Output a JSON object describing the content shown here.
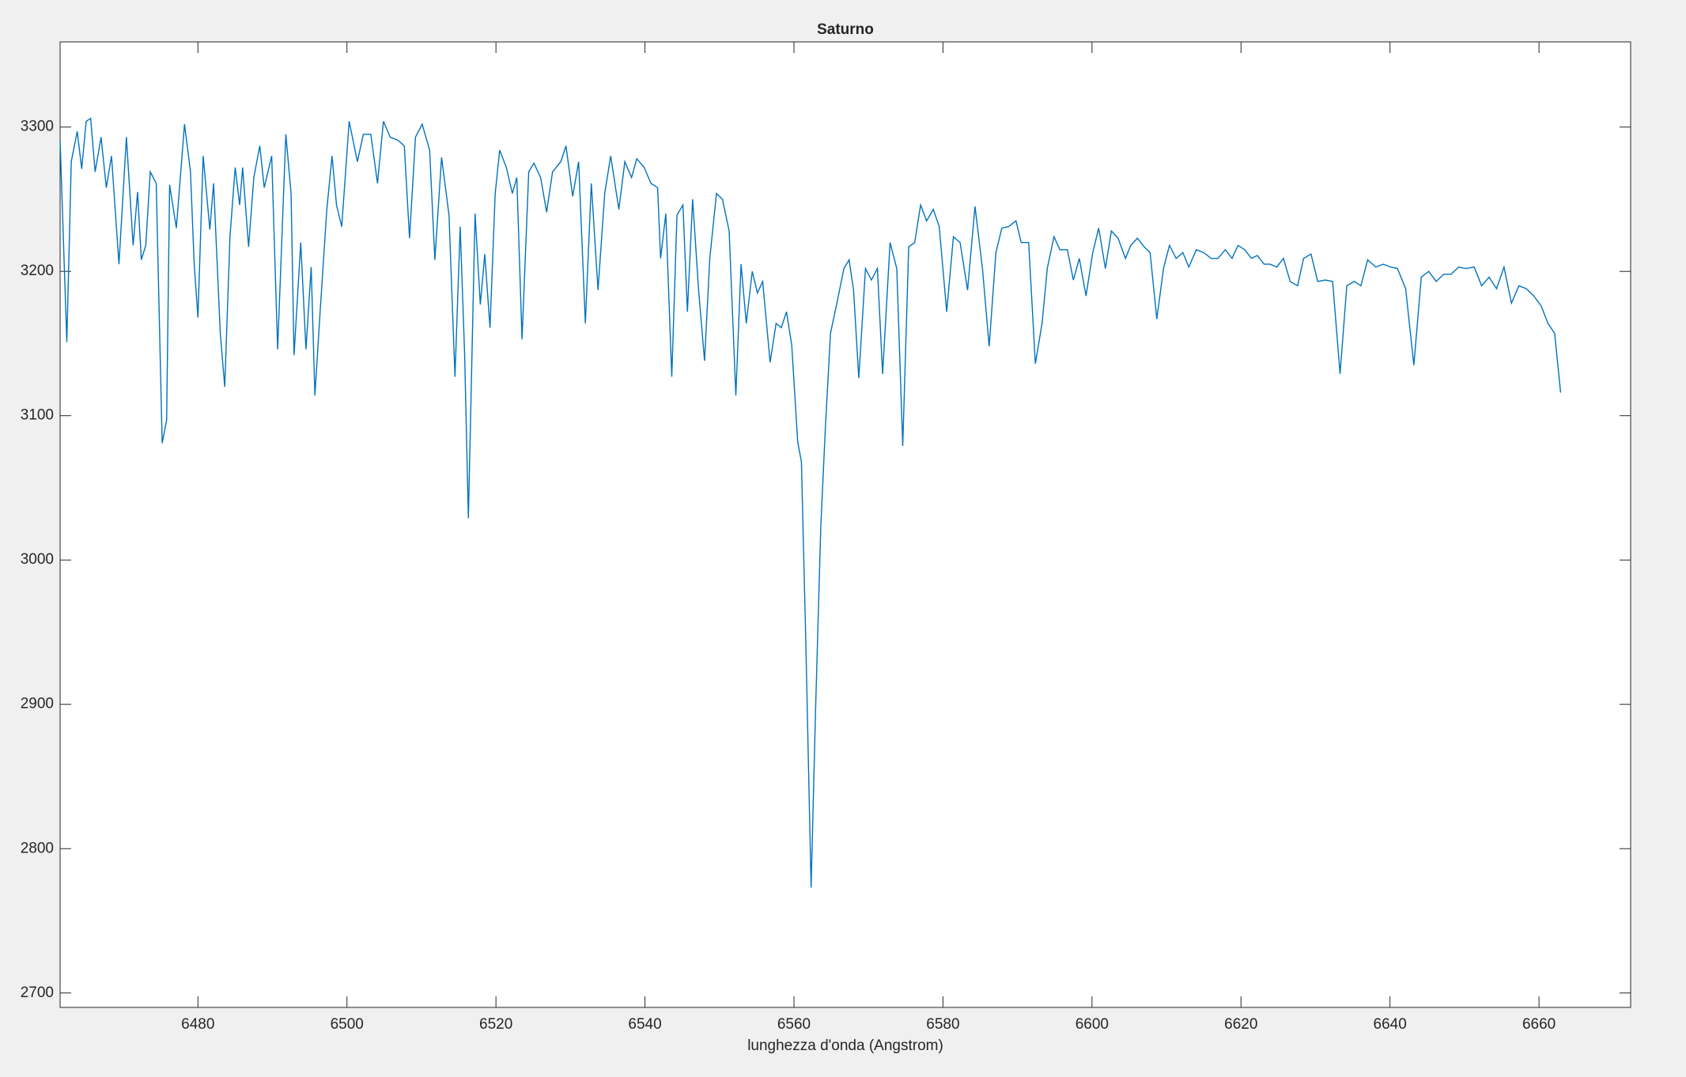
{
  "chart_data": {
    "type": "line",
    "title": "Saturno",
    "xlabel": "lunghezza d'onda (Angstrom)",
    "xlim": [
      6461.5,
      6672.3
    ],
    "ylim": [
      2690,
      3359
    ],
    "xticks": [
      6480,
      6500,
      6520,
      6540,
      6560,
      6580,
      6600,
      6620,
      6640,
      6660
    ],
    "yticks": [
      2700,
      2800,
      2900,
      3000,
      3100,
      3200,
      3300
    ],
    "series": [
      {
        "color": "#0072bd",
        "x": [
          6461.5,
          6462.4,
          6463.0,
          6463.8,
          6464.4,
          6465.0,
          6465.6,
          6466.2,
          6467.0,
          6467.7,
          6468.4,
          6469.4,
          6470.4,
          6471.3,
          6471.9,
          6472.4,
          6473.0,
          6473.6,
          6474.4,
          6475.2,
          6475.8,
          6476.2,
          6477.1,
          6478.2,
          6479.0,
          6479.5,
          6480.0,
          6480.7,
          6481.6,
          6482.1,
          6483.0,
          6483.6,
          6484.3,
          6485.0,
          6485.6,
          6486.0,
          6486.8,
          6487.5,
          6488.3,
          6488.9,
          6489.9,
          6490.7,
          6491.8,
          6492.5,
          6492.9,
          6493.8,
          6494.5,
          6495.2,
          6495.7,
          6496.4,
          6497.3,
          6498.0,
          6498.6,
          6499.3,
          6500.3,
          6501.4,
          6502.2,
          6503.2,
          6504.1,
          6504.9,
          6505.8,
          6506.8,
          6507.7,
          6508.4,
          6509.2,
          6510.1,
          6511.1,
          6511.8,
          6512.7,
          6513.7,
          6514.5,
          6515.2,
          6515.8,
          6516.3,
          6517.2,
          6517.9,
          6518.5,
          6519.2,
          6519.9,
          6520.5,
          6521.4,
          6522.2,
          6522.8,
          6523.5,
          6524.4,
          6525.1,
          6526.0,
          6526.8,
          6527.6,
          6528.7,
          6529.4,
          6530.3,
          6531.1,
          6532.0,
          6532.8,
          6533.7,
          6534.6,
          6535.4,
          6536.5,
          6537.3,
          6538.2,
          6538.9,
          6539.9,
          6540.8,
          6541.7,
          6542.1,
          6542.8,
          6543.6,
          6544.3,
          6545.1,
          6545.7,
          6546.4,
          6547.2,
          6548.0,
          6548.7,
          6549.6,
          6550.4,
          6551.3,
          6552.2,
          6552.9,
          6553.6,
          6554.4,
          6555.1,
          6555.8,
          6556.8,
          6557.6,
          6558.3,
          6559.0,
          6559.7,
          6560.5,
          6561.0,
          6561.6,
          6562.3,
          6562.9,
          6563.6,
          6564.2,
          6564.9,
          6565.8,
          6566.7,
          6567.4,
          6568.0,
          6568.7,
          6569.6,
          6570.4,
          6571.2,
          6571.9,
          6572.9,
          6573.8,
          6574.6,
          6575.4,
          6576.2,
          6577.0,
          6577.8,
          6578.7,
          6579.5,
          6580.5,
          6581.4,
          6582.3,
          6583.3,
          6584.3,
          6585.3,
          6586.2,
          6587.1,
          6587.9,
          6588.8,
          6589.8,
          6590.5,
          6591.5,
          6592.4,
          6593.3,
          6594.0,
          6594.9,
          6595.7,
          6596.7,
          6597.5,
          6598.3,
          6599.2,
          6600.1,
          6600.9,
          6601.8,
          6602.6,
          6603.5,
          6604.5,
          6605.2,
          6606.1,
          6607.0,
          6607.8,
          6608.7,
          6609.6,
          6610.4,
          6611.3,
          6612.2,
          6613.0,
          6614.0,
          6615.0,
          6616.0,
          6616.9,
          6617.9,
          6618.8,
          6619.6,
          6620.5,
          6621.4,
          6622.2,
          6623.1,
          6623.9,
          6624.8,
          6625.7,
          6626.6,
          6627.6,
          6628.4,
          6629.4,
          6630.3,
          6631.3,
          6632.3,
          6633.3,
          6634.2,
          6635.2,
          6636.1,
          6637.0,
          6638.1,
          6639.1,
          6640.1,
          6641.0,
          6642.1,
          6643.2,
          6644.2,
          6645.2,
          6646.2,
          6647.2,
          6648.2,
          6649.2,
          6650.2,
          6651.3,
          6652.3,
          6653.3,
          6654.3,
          6655.3,
          6656.3,
          6657.3,
          6658.3,
          6659.3,
          6660.3,
          6661.2,
          6662.1,
          6662.9
        ],
        "values": [
          3291,
          3151,
          3276,
          3297,
          3271,
          3304,
          3306,
          3269,
          3293,
          3258,
          3280,
          3205,
          3293,
          3218,
          3255,
          3208,
          3218,
          3269,
          3261,
          3081,
          3097,
          3260,
          3230,
          3302,
          3269,
          3205,
          3168,
          3280,
          3229,
          3261,
          3157,
          3120,
          3224,
          3272,
          3246,
          3272,
          3217,
          3265,
          3287,
          3258,
          3280,
          3146,
          3295,
          3254,
          3142,
          3220,
          3146,
          3203,
          3114,
          3172,
          3243,
          3280,
          3246,
          3231,
          3304,
          3276,
          3295,
          3295,
          3261,
          3304,
          3293,
          3291,
          3287,
          3223,
          3293,
          3302,
          3284,
          3208,
          3279,
          3239,
          3127,
          3231,
          3142,
          3029,
          3240,
          3177,
          3212,
          3161,
          3254,
          3284,
          3272,
          3254,
          3265,
          3153,
          3269,
          3275,
          3265,
          3241,
          3269,
          3276,
          3287,
          3252,
          3276,
          3164,
          3261,
          3187,
          3254,
          3280,
          3243,
          3276,
          3265,
          3278,
          3272,
          3261,
          3258,
          3209,
          3240,
          3127,
          3239,
          3246,
          3172,
          3250,
          3187,
          3138,
          3209,
          3254,
          3250,
          3228,
          3114,
          3205,
          3164,
          3200,
          3185,
          3193,
          3137,
          3164,
          3161,
          3172,
          3149,
          3082,
          3068,
          2941,
          2773,
          2896,
          3023,
          3090,
          3157,
          3179,
          3202,
          3208,
          3187,
          3126,
          3202,
          3194,
          3202,
          3129,
          3220,
          3202,
          3079,
          3217,
          3220,
          3246,
          3235,
          3243,
          3231,
          3172,
          3224,
          3220,
          3187,
          3245,
          3202,
          3148,
          3213,
          3230,
          3231,
          3235,
          3220,
          3220,
          3136,
          3164,
          3202,
          3224,
          3215,
          3215,
          3194,
          3209,
          3183,
          3213,
          3230,
          3202,
          3228,
          3223,
          3209,
          3218,
          3223,
          3217,
          3213,
          3167,
          3202,
          3218,
          3209,
          3213,
          3203,
          3215,
          3213,
          3209,
          3209,
          3215,
          3209,
          3218,
          3215,
          3209,
          3211,
          3205,
          3205,
          3203,
          3209,
          3193,
          3190,
          3209,
          3212,
          3193,
          3194,
          3193,
          3129,
          3190,
          3193,
          3190,
          3208,
          3203,
          3205,
          3203,
          3202,
          3188,
          3135,
          3196,
          3200,
          3193,
          3198,
          3198,
          3203,
          3202,
          3203,
          3190,
          3196,
          3188,
          3203,
          3178,
          3190,
          3188,
          3183,
          3176,
          3164,
          3157,
          3116
        ]
      }
    ]
  }
}
